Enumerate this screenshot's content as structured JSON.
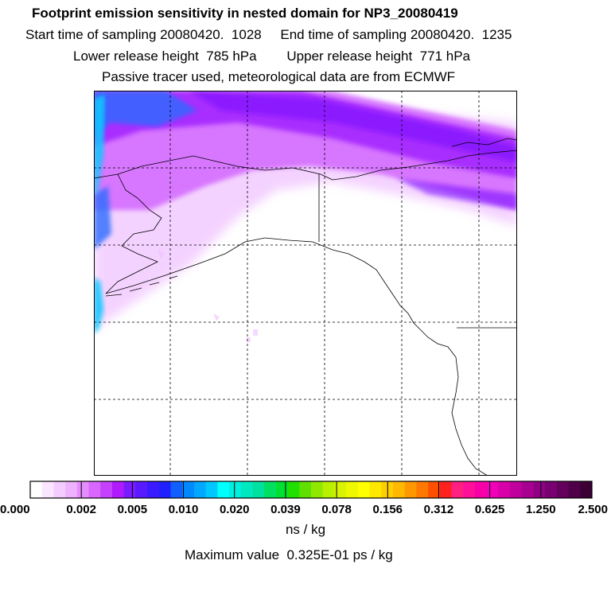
{
  "header": {
    "title": "Footprint emission sensitivity in nested domain for NP3_20080419",
    "start_label": "Start time of sampling 20080420.  1028",
    "end_label": "End time of sampling 20080420.  1235",
    "lower_label": "Lower release height  785 hPa",
    "upper_label": "Upper release height  771 hPa",
    "note": "Passive tracer used, meteorological data are from ECMWF"
  },
  "colorbar": {
    "tick_labels": [
      "0.000",
      "0.002",
      "0.005",
      "0.010",
      "0.020",
      "0.039",
      "0.078",
      "0.156",
      "0.312",
      "0.625",
      "1.250",
      "2.500"
    ],
    "colors": [
      "#ffffff",
      "#fbe6ff",
      "#f5ccff",
      "#efb2ff",
      "#e58cff",
      "#d966ff",
      "#c640ff",
      "#b01aff",
      "#7a1aff",
      "#5a1aff",
      "#3a1aff",
      "#2020ff",
      "#1060ff",
      "#0088ff",
      "#00a8ff",
      "#00c8ff",
      "#00ffff",
      "#00f0e0",
      "#00e8c0",
      "#00e0a0",
      "#00e060",
      "#00e030",
      "#20e000",
      "#60e000",
      "#90e800",
      "#b8f000",
      "#d8f400",
      "#f0f800",
      "#ffff00",
      "#ffe800",
      "#ffd000",
      "#ffb800",
      "#ff9800",
      "#ff7800",
      "#ff5000",
      "#ff2020",
      "#ff2080",
      "#ff1098",
      "#f800a8",
      "#f000b8",
      "#d800a8",
      "#c0009c",
      "#a80090",
      "#900084",
      "#780070",
      "#64005c",
      "#500048",
      "#3c0034"
    ],
    "unit": "ns / kg"
  },
  "max_value_label": "Maximum value  0.325E-01 ps / kg",
  "map": {
    "colors": {
      "light": "#f0c0ff",
      "magenta": "#d060ff",
      "purple": "#a020ff",
      "deep": "#7a10ff",
      "blue": "#2a6cff",
      "cyan": "#10c8ff"
    }
  }
}
